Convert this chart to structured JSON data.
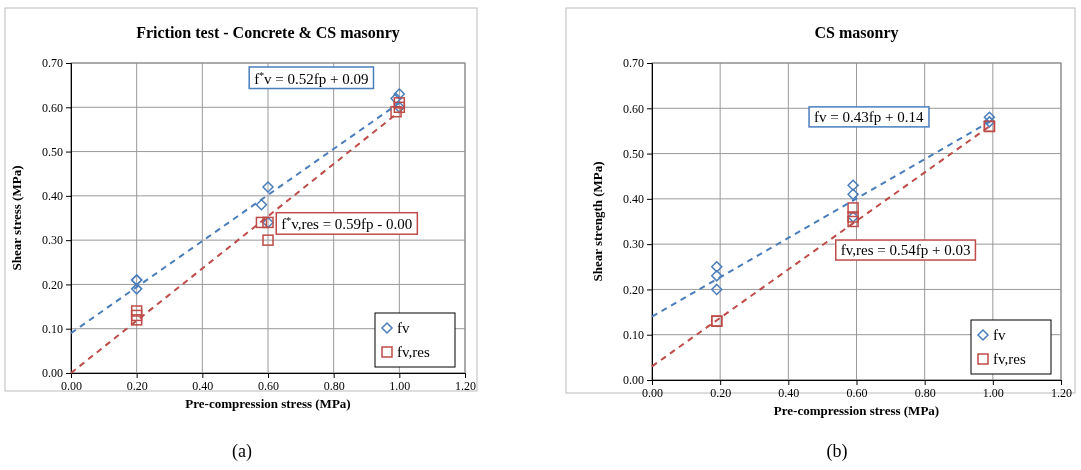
{
  "chart_data": [
    {
      "type": "scatter",
      "title": "Friction test - Concrete & CS masonry",
      "xlabel": "Pre-compression stress (MPa)",
      "ylabel": "Shear stress (MPa)",
      "xlim": [
        0,
        1.2
      ],
      "ylim": [
        0,
        0.7
      ],
      "xticks": [
        {
          "value": 0,
          "label": "0.00"
        },
        {
          "value": 0.2,
          "label": "0.20"
        },
        {
          "value": 0.4,
          "label": "0.40"
        },
        {
          "value": 0.6,
          "label": "0.60"
        },
        {
          "value": 0.8,
          "label": "0.80"
        },
        {
          "value": 1,
          "label": "1.00"
        },
        {
          "value": 1.2,
          "label": "1.20"
        }
      ],
      "yticks": [
        {
          "value": 0,
          "label": "0.00"
        },
        {
          "value": 0.1,
          "label": "0.10"
        },
        {
          "value": 0.2,
          "label": "0.20"
        },
        {
          "value": 0.3,
          "label": "0.30"
        },
        {
          "value": 0.4,
          "label": "0.40"
        },
        {
          "value": 0.5,
          "label": "0.50"
        },
        {
          "value": 0.6,
          "label": "0.60"
        },
        {
          "value": 0.7,
          "label": "0.70"
        }
      ],
      "grid": true,
      "legend": "bottom right",
      "series": [
        {
          "name": "fv",
          "marker": "diamond",
          "color": "#4a7ebb",
          "x": [
            0.2,
            0.2,
            0.2,
            0.58,
            0.6,
            0.6,
            0.99,
            1.0,
            1.0
          ],
          "values": [
            0.21,
            0.21,
            0.19,
            0.38,
            0.42,
            0.34,
            0.62,
            0.63,
            0.6
          ]
        },
        {
          "name": "fv,res",
          "marker": "square",
          "color": "#be4b48",
          "x": [
            0.2,
            0.2,
            0.2,
            0.58,
            0.6,
            0.6,
            0.99,
            1.0,
            1.0
          ],
          "values": [
            0.14,
            0.13,
            0.12,
            0.34,
            0.34,
            0.3,
            0.59,
            0.61,
            0.6
          ]
        },
        {
          "type": "line",
          "line_style": "dashed",
          "marker": "none",
          "color": "#4a7ebb",
          "x": [
            0,
            1.0
          ],
          "values": [
            0.09,
            0.61
          ]
        },
        {
          "type": "line",
          "line_style": "dashed",
          "marker": "none",
          "color": "#be4b48",
          "x": [
            0,
            1.0
          ],
          "values": [
            0,
            0.59
          ]
        }
      ],
      "annotations": [
        "f$^{*}$v = 0.52fp + 0.09",
        "f$^{*}$v,res = 0.59fp - 0.00",
        "(a)"
      ]
    },
    {
      "type": "scatter",
      "title": "CS masonry",
      "xlabel": "Pre-compression stress (MPa)",
      "ylabel": "Shear strength (MPa)",
      "xlim": [
        0,
        1.2
      ],
      "ylim": [
        0,
        0.7
      ],
      "xticks": [
        {
          "value": 0,
          "label": "0.00"
        },
        {
          "value": 0.2,
          "label": "0.20"
        },
        {
          "value": 0.4,
          "label": "0.40"
        },
        {
          "value": 0.6,
          "label": "0.60"
        },
        {
          "value": 0.8,
          "label": "0.80"
        },
        {
          "value": 1,
          "label": "1.00"
        },
        {
          "value": 1.2,
          "label": "1.20"
        }
      ],
      "yticks": [
        {
          "value": 0,
          "label": "0.00"
        },
        {
          "value": 0.1,
          "label": "0.10"
        },
        {
          "value": 0.2,
          "label": "0.20"
        },
        {
          "value": 0.3,
          "label": "0.30"
        },
        {
          "value": 0.4,
          "label": "0.40"
        },
        {
          "value": 0.5,
          "label": "0.50"
        },
        {
          "value": 0.6,
          "label": "0.60"
        },
        {
          "value": 0.7,
          "label": "0.70"
        }
      ],
      "grid": true,
      "legend": "bottom right",
      "series": [
        {
          "name": "fv",
          "marker": "diamond",
          "color": "#4a7ebb",
          "x": [
            0.19,
            0.19,
            0.19,
            0.59,
            0.59,
            0.59,
            0.99,
            0.99
          ],
          "values": [
            0.25,
            0.23,
            0.2,
            0.43,
            0.41,
            0.36,
            0.58,
            0.57
          ]
        },
        {
          "name": "fv,res",
          "marker": "square",
          "color": "#be4b48",
          "x": [
            0.19,
            0.19,
            0.59,
            0.59,
            0.59,
            0.99,
            0.99
          ],
          "values": [
            0.13,
            0.13,
            0.38,
            0.36,
            0.35,
            0.56,
            0.56
          ]
        },
        {
          "type": "line",
          "line_style": "dashed",
          "marker": "none",
          "color": "#4a7ebb",
          "x": [
            0,
            0.99
          ],
          "values": [
            0.14,
            0.57
          ]
        },
        {
          "type": "line",
          "line_style": "dashed",
          "marker": "none",
          "color": "#be4b48",
          "x": [
            0,
            0.99
          ],
          "values": [
            0.03,
            0.56
          ]
        }
      ],
      "annotations": [
        "fv = 0.43fp + 0.14",
        "fv,res = 0.54fp + 0.03",
        "(b)"
      ]
    }
  ]
}
